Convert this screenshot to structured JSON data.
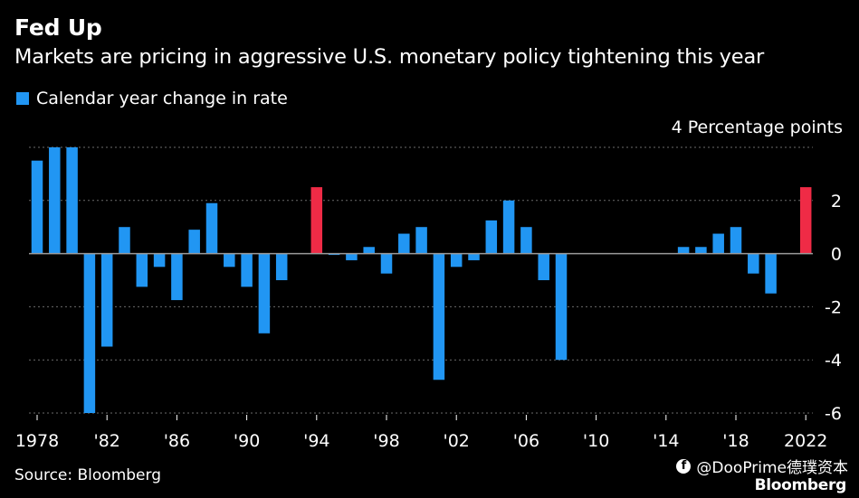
{
  "title": "Fed Up",
  "subtitle": "Markets are pricing in aggressive U.S. monetary policy tightening this year",
  "legend": {
    "label": "Calendar year change in rate"
  },
  "units_label": "4 Percentage points",
  "source": "Source: Bloomberg",
  "watermark": "@DooPrime德璞资本",
  "brand": "Bloomberg",
  "colors": {
    "bar": "#2196f3",
    "highlight": "#ef2b46",
    "grid": "#6b6b6b",
    "zero": "#9a9a9a"
  },
  "chart_data": {
    "type": "bar",
    "ylim": [
      -6,
      4
    ],
    "yticks": [
      2,
      0,
      -2,
      -4,
      -6
    ],
    "ytick_labels": [
      "2",
      "0",
      "-2",
      "-4",
      "-6"
    ],
    "xtick_labels": [
      "1978",
      "'82",
      "'86",
      "'90",
      "'94",
      "'98",
      "'02",
      "'06",
      "'10",
      "'14",
      "'18",
      "2022"
    ],
    "xtick_years": [
      1978,
      1982,
      1986,
      1990,
      1994,
      1998,
      2002,
      2006,
      2010,
      2014,
      2018,
      2022
    ],
    "series": [
      {
        "values": [
          {
            "year": 1978,
            "value": 3.5
          },
          {
            "year": 1979,
            "value": 4.0
          },
          {
            "year": 1980,
            "value": 4.0
          },
          {
            "year": 1981,
            "value": -6.0
          },
          {
            "year": 1982,
            "value": -3.5
          },
          {
            "year": 1983,
            "value": 1.0
          },
          {
            "year": 1984,
            "value": -1.25
          },
          {
            "year": 1985,
            "value": -0.5
          },
          {
            "year": 1986,
            "value": -1.75
          },
          {
            "year": 1987,
            "value": 0.9
          },
          {
            "year": 1988,
            "value": 1.9
          },
          {
            "year": 1989,
            "value": -0.5
          },
          {
            "year": 1990,
            "value": -1.25
          },
          {
            "year": 1991,
            "value": -3.0
          },
          {
            "year": 1992,
            "value": -1.0
          },
          {
            "year": 1993,
            "value": 0.0
          },
          {
            "year": 1994,
            "value": 2.5,
            "highlight": true
          },
          {
            "year": 1995,
            "value": -0.05
          },
          {
            "year": 1996,
            "value": -0.25
          },
          {
            "year": 1997,
            "value": 0.25
          },
          {
            "year": 1998,
            "value": -0.75
          },
          {
            "year": 1999,
            "value": 0.75
          },
          {
            "year": 2000,
            "value": 1.0
          },
          {
            "year": 2001,
            "value": -4.75
          },
          {
            "year": 2002,
            "value": -0.5
          },
          {
            "year": 2003,
            "value": -0.25
          },
          {
            "year": 2004,
            "value": 1.25
          },
          {
            "year": 2005,
            "value": 2.0
          },
          {
            "year": 2006,
            "value": 1.0
          },
          {
            "year": 2007,
            "value": -1.0
          },
          {
            "year": 2008,
            "value": -4.0
          },
          {
            "year": 2009,
            "value": 0.0
          },
          {
            "year": 2010,
            "value": 0.0
          },
          {
            "year": 2011,
            "value": 0.0
          },
          {
            "year": 2012,
            "value": 0.0
          },
          {
            "year": 2013,
            "value": 0.0
          },
          {
            "year": 2014,
            "value": 0.0
          },
          {
            "year": 2015,
            "value": 0.25
          },
          {
            "year": 2016,
            "value": 0.25
          },
          {
            "year": 2017,
            "value": 0.75
          },
          {
            "year": 2018,
            "value": 1.0
          },
          {
            "year": 2019,
            "value": -0.75
          },
          {
            "year": 2020,
            "value": -1.5
          },
          {
            "year": 2021,
            "value": 0.0
          },
          {
            "year": 2022,
            "value": 2.5,
            "highlight": true
          }
        ]
      }
    ]
  }
}
